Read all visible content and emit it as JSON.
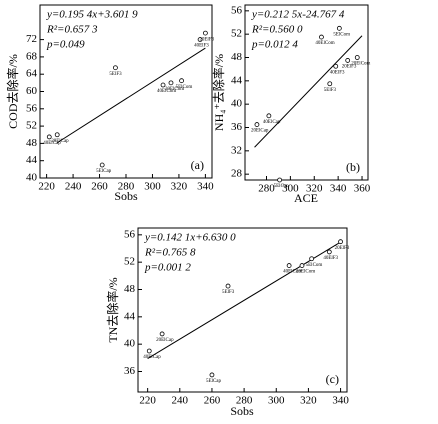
{
  "chart_data": [
    {
      "type": "scatter",
      "panel": "(a)",
      "xlabel": "Sobs",
      "ylabel": "COD去除率/%",
      "xlim": [
        215,
        345
      ],
      "ylim": [
        40,
        80
      ],
      "xticks": [
        220,
        240,
        260,
        280,
        300,
        320,
        340
      ],
      "yticks": [
        40,
        44,
        48,
        52,
        56,
        60,
        64,
        68,
        72
      ],
      "x": [
        222,
        228,
        262,
        272,
        308,
        314,
        322,
        336,
        340
      ],
      "y": [
        49.5,
        50,
        43,
        65.5,
        61.5,
        62,
        62.5,
        72,
        73.5
      ],
      "point_labels": [
        "40ElCap",
        "20ElCap",
        "5ElCap",
        "5ElF3",
        "40ElCom",
        "20ElCom",
        "5ElCom",
        "40ElF3",
        "20ElF3"
      ],
      "fit_line": {
        "x": [
          228,
          340
        ],
        "y": [
          48.15,
          70.04
        ]
      },
      "annotations": [
        "y=0.195 4x+3.601 9",
        "R²=0.657 3",
        "p=0.049"
      ],
      "color": "#000000"
    },
    {
      "type": "scatter",
      "panel": "(b)",
      "xlabel": "ACE",
      "ylabel": "NH₄⁺去除率/%",
      "xlim": [
        262,
        365
      ],
      "ylim": [
        27,
        57
      ],
      "xticks": [
        280,
        300,
        320,
        340,
        360
      ],
      "yticks": [
        28,
        32,
        36,
        40,
        44,
        48,
        52,
        56
      ],
      "x": [
        272,
        282,
        291,
        326,
        341,
        333,
        338,
        348,
        356
      ],
      "y": [
        36.5,
        38,
        27,
        51.5,
        53,
        43.5,
        46.5,
        47.5,
        48
      ],
      "point_labels": [
        "20ElCap",
        "40ElCap",
        "5ElCap",
        "40ElCom",
        "5ElCom",
        "5ElF3",
        "40ElF3",
        "20ElF3",
        "20ElCom"
      ],
      "fit_line": {
        "x": [
          270,
          360
        ],
        "y": [
          32.61,
          51.73
        ]
      },
      "annotations": [
        "y=0.212 5x-24.767 4",
        "R²=0.560 0",
        "p=0.012 4"
      ],
      "color": "#000000"
    },
    {
      "type": "scatter",
      "panel": "(c)",
      "xlabel": "Sobs",
      "ylabel": "TN去除率/%",
      "xlim": [
        214,
        344
      ],
      "ylim": [
        33,
        57
      ],
      "xticks": [
        220,
        240,
        260,
        280,
        300,
        320,
        340
      ],
      "yticks": [
        36,
        40,
        44,
        48,
        52,
        56
      ],
      "x": [
        221,
        229,
        270,
        260,
        308,
        316,
        322,
        333,
        340
      ],
      "y": [
        39,
        41.5,
        48.5,
        35.5,
        51.5,
        51.5,
        52.5,
        53.5,
        55
      ],
      "point_labels": [
        "40ElCap",
        "20ElCap",
        "5ElF3",
        "5ElCap",
        "40ElCom",
        "20ElCom",
        "5ElCom",
        "40ElF3",
        "20ElF3"
      ],
      "fit_line": {
        "x": [
          220,
          340
        ],
        "y": [
          37.89,
          54.94
        ]
      },
      "annotations": [
        "y=0.142 1x+6.630 0",
        "R²=0.765 8",
        "p=0.001 2"
      ],
      "color": "#000000"
    }
  ]
}
